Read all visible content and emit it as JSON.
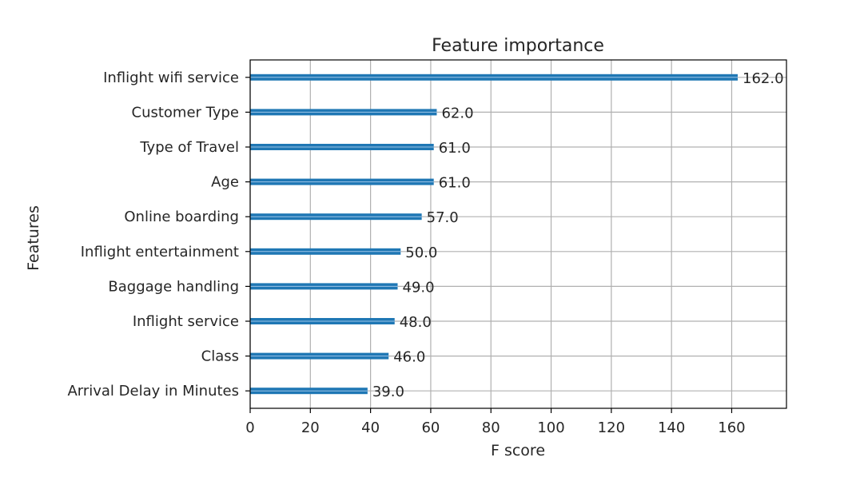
{
  "chart_data": {
    "type": "bar",
    "orientation": "horizontal",
    "title": "Feature importance",
    "xlabel": "F score",
    "ylabel": "Features",
    "categories": [
      "Inflight wifi service",
      "Customer Type",
      "Type of Travel",
      "Age",
      "Online boarding",
      "Inflight entertainment",
      "Baggage handling",
      "Inflight service",
      "Class",
      "Arrival Delay in Minutes"
    ],
    "values": [
      162.0,
      62.0,
      61.0,
      61.0,
      57.0,
      50.0,
      49.0,
      48.0,
      46.0,
      39.0
    ],
    "value_labels": [
      "162.0",
      "62.0",
      "61.0",
      "61.0",
      "57.0",
      "50.0",
      "49.0",
      "48.0",
      "46.0",
      "39.0"
    ],
    "xlim": [
      0,
      178.2
    ],
    "xticks": [
      0,
      20,
      40,
      60,
      80,
      100,
      120,
      140,
      160
    ],
    "xtick_labels": [
      "0",
      "20",
      "40",
      "60",
      "80",
      "100",
      "120",
      "140",
      "160"
    ],
    "grid": true,
    "legend": "none",
    "bar_color": "#1f77b4",
    "grid_color": "#b0b0b0"
  }
}
